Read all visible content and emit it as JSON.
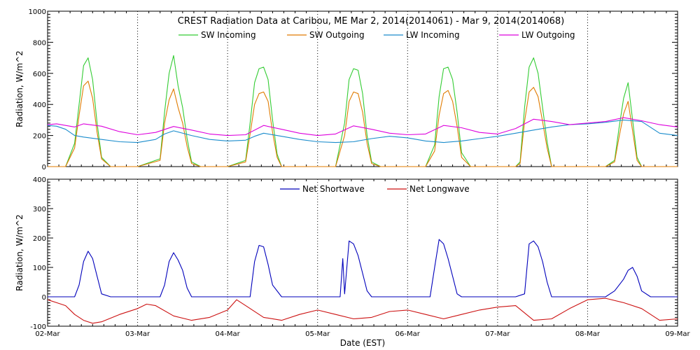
{
  "chart_data": [
    {
      "type": "line",
      "title": "CREST Radiation Data at Caribou, ME   Mar  2, 2014(2014061) - Mar  9, 2014(2014068)",
      "ylabel": "Radiation, W/m^2",
      "ylim": [
        0,
        1000
      ],
      "yticks": [
        0,
        200,
        400,
        600,
        800,
        1000
      ],
      "xlim": [
        0,
        7
      ],
      "grid": true,
      "legend_position": "top",
      "series": [
        {
          "name": "SW Incoming",
          "color": "#33cc33",
          "x": [
            0,
            0.1,
            0.2,
            0.3,
            0.35,
            0.4,
            0.45,
            0.5,
            0.55,
            0.6,
            0.7,
            0.8,
            1,
            1.25,
            1.3,
            1.35,
            1.4,
            1.45,
            1.5,
            1.55,
            1.6,
            1.7,
            1.8,
            2,
            2.2,
            2.25,
            2.3,
            2.35,
            2.4,
            2.45,
            2.5,
            2.55,
            2.6,
            2.7,
            2.8,
            3,
            3.2,
            3.3,
            3.35,
            3.4,
            3.45,
            3.5,
            3.55,
            3.6,
            3.7,
            3.8,
            4,
            4.2,
            4.3,
            4.35,
            4.4,
            4.45,
            4.5,
            4.55,
            4.6,
            4.7,
            4.8,
            5,
            5.2,
            5.25,
            5.3,
            5.35,
            5.4,
            5.45,
            5.5,
            5.55,
            5.6,
            5.7,
            5.8,
            6,
            6.2,
            6.3,
            6.35,
            6.4,
            6.45,
            6.5,
            6.55,
            6.6,
            6.7,
            6.8,
            7
          ],
          "y": [
            0,
            0,
            0,
            150,
            400,
            650,
            700,
            560,
            280,
            60,
            0,
            0,
            0,
            50,
            350,
            600,
            715,
            520,
            380,
            180,
            30,
            0,
            0,
            0,
            40,
            280,
            540,
            630,
            640,
            560,
            300,
            80,
            0,
            0,
            0,
            0,
            0,
            280,
            560,
            630,
            620,
            470,
            200,
            30,
            0,
            0,
            0,
            0,
            140,
            450,
            630,
            640,
            560,
            350,
            90,
            0,
            0,
            0,
            0,
            30,
            380,
            640,
            700,
            600,
            380,
            160,
            0,
            0,
            0,
            0,
            0,
            40,
            250,
            440,
            540,
            300,
            60,
            0,
            0,
            0,
            0
          ]
        },
        {
          "name": "SW Outgoing",
          "color": "#e07b00",
          "x": [
            0,
            0.1,
            0.2,
            0.3,
            0.35,
            0.4,
            0.45,
            0.5,
            0.55,
            0.6,
            0.7,
            0.8,
            1,
            1.25,
            1.3,
            1.35,
            1.4,
            1.45,
            1.5,
            1.55,
            1.6,
            1.7,
            1.8,
            2,
            2.2,
            2.25,
            2.3,
            2.35,
            2.4,
            2.45,
            2.5,
            2.55,
            2.6,
            2.7,
            2.8,
            3,
            3.2,
            3.3,
            3.35,
            3.4,
            3.45,
            3.5,
            3.55,
            3.6,
            3.7,
            3.8,
            4,
            4.2,
            4.3,
            4.35,
            4.4,
            4.45,
            4.5,
            4.55,
            4.6,
            4.7,
            4.8,
            5,
            5.2,
            5.25,
            5.3,
            5.35,
            5.4,
            5.45,
            5.5,
            5.55,
            5.6,
            5.7,
            5.8,
            6,
            6.2,
            6.3,
            6.35,
            6.4,
            6.45,
            6.5,
            6.55,
            6.6,
            6.7,
            6.8,
            7
          ],
          "y": [
            0,
            0,
            0,
            120,
            330,
            520,
            550,
            440,
            220,
            50,
            0,
            0,
            0,
            40,
            280,
            430,
            500,
            380,
            280,
            130,
            20,
            0,
            0,
            0,
            30,
            210,
            400,
            470,
            480,
            420,
            220,
            60,
            0,
            0,
            0,
            0,
            0,
            200,
            420,
            480,
            470,
            350,
            150,
            20,
            0,
            0,
            0,
            0,
            100,
            330,
            470,
            490,
            420,
            260,
            60,
            0,
            0,
            0,
            0,
            20,
            290,
            480,
            510,
            450,
            290,
            120,
            0,
            0,
            0,
            0,
            0,
            30,
            190,
            340,
            420,
            230,
            40,
            0,
            0,
            0,
            0
          ]
        },
        {
          "name": "LW Incoming",
          "color": "#1a8ccc",
          "x": [
            0,
            0.1,
            0.2,
            0.3,
            0.4,
            0.6,
            0.8,
            1,
            1.2,
            1.3,
            1.4,
            1.6,
            1.8,
            2,
            2.2,
            2.3,
            2.4,
            2.6,
            2.8,
            3,
            3.2,
            3.4,
            3.6,
            3.8,
            4,
            4.2,
            4.4,
            4.6,
            4.8,
            5,
            5.2,
            5.4,
            5.6,
            5.8,
            6,
            6.2,
            6.4,
            6.6,
            6.8,
            7
          ],
          "y": [
            265,
            260,
            240,
            200,
            190,
            175,
            160,
            155,
            175,
            210,
            230,
            200,
            175,
            165,
            170,
            195,
            215,
            195,
            175,
            160,
            155,
            160,
            180,
            195,
            185,
            165,
            155,
            165,
            180,
            195,
            215,
            235,
            255,
            270,
            275,
            285,
            300,
            290,
            215,
            200
          ]
        },
        {
          "name": "LW Outgoing",
          "color": "#dd00dd",
          "x": [
            0,
            0.1,
            0.2,
            0.3,
            0.4,
            0.6,
            0.8,
            1,
            1.2,
            1.4,
            1.6,
            1.8,
            2,
            2.2,
            2.4,
            2.6,
            2.8,
            3,
            3.2,
            3.4,
            3.6,
            3.8,
            4,
            4.2,
            4.4,
            4.6,
            4.8,
            5,
            5.2,
            5.4,
            5.6,
            5.8,
            6,
            6.2,
            6.4,
            6.6,
            6.8,
            7
          ],
          "y": [
            270,
            275,
            265,
            255,
            275,
            260,
            225,
            205,
            220,
            258,
            235,
            210,
            200,
            205,
            265,
            240,
            215,
            200,
            210,
            262,
            240,
            215,
            205,
            210,
            265,
            250,
            220,
            210,
            245,
            305,
            290,
            270,
            280,
            290,
            315,
            295,
            270,
            255
          ]
        }
      ]
    },
    {
      "type": "line",
      "title": "",
      "xlabel": "Date (EST)",
      "ylabel": "Radiation, W/m^2",
      "ylim": [
        -100,
        400
      ],
      "yticks": [
        -100,
        0,
        100,
        200,
        300,
        400
      ],
      "xlim": [
        0,
        7
      ],
      "categories": [
        "02-Mar",
        "03-Mar",
        "04-Mar",
        "05-Mar",
        "06-Mar",
        "07-Mar",
        "08-Mar",
        "09-Mar"
      ],
      "grid": true,
      "legend_position": "top",
      "series": [
        {
          "name": "Net Shortwave",
          "color": "#0000bb",
          "x": [
            0,
            0.3,
            0.35,
            0.4,
            0.45,
            0.5,
            0.55,
            0.6,
            0.7,
            1,
            1.25,
            1.3,
            1.35,
            1.4,
            1.45,
            1.5,
            1.55,
            1.6,
            1.7,
            2,
            2.25,
            2.3,
            2.35,
            2.4,
            2.45,
            2.5,
            2.6,
            2.7,
            3,
            3.25,
            3.28,
            3.3,
            3.35,
            3.4,
            3.45,
            3.5,
            3.55,
            3.6,
            3.7,
            4,
            4.25,
            4.3,
            4.35,
            4.4,
            4.45,
            4.5,
            4.55,
            4.6,
            4.7,
            5,
            5.2,
            5.3,
            5.35,
            5.4,
            5.45,
            5.5,
            5.55,
            5.6,
            5.7,
            6,
            6.2,
            6.3,
            6.4,
            6.45,
            6.5,
            6.55,
            6.6,
            6.7,
            7
          ],
          "y": [
            0,
            0,
            40,
            120,
            155,
            130,
            70,
            10,
            0,
            0,
            0,
            40,
            120,
            150,
            125,
            90,
            30,
            0,
            0,
            0,
            0,
            120,
            175,
            170,
            110,
            40,
            0,
            0,
            0,
            0,
            130,
            10,
            190,
            180,
            140,
            80,
            20,
            0,
            0,
            0,
            0,
            100,
            195,
            180,
            130,
            70,
            10,
            0,
            0,
            0,
            0,
            10,
            180,
            190,
            170,
            120,
            50,
            0,
            0,
            0,
            0,
            20,
            60,
            90,
            100,
            70,
            20,
            0,
            0
          ]
        },
        {
          "name": "Net Longwave",
          "color": "#cc1111",
          "x": [
            0,
            0.1,
            0.2,
            0.3,
            0.4,
            0.5,
            0.6,
            0.8,
            1,
            1.1,
            1.2,
            1.4,
            1.6,
            1.8,
            2,
            2.1,
            2.2,
            2.4,
            2.6,
            2.8,
            3,
            3.2,
            3.4,
            3.6,
            3.8,
            4,
            4.2,
            4.4,
            4.6,
            4.8,
            5,
            5.2,
            5.4,
            5.6,
            5.8,
            6,
            6.2,
            6.4,
            6.6,
            6.8,
            7
          ],
          "y": [
            -10,
            -20,
            -30,
            -60,
            -80,
            -90,
            -85,
            -60,
            -40,
            -25,
            -30,
            -65,
            -80,
            -70,
            -45,
            -10,
            -30,
            -70,
            -80,
            -60,
            -45,
            -60,
            -75,
            -70,
            -50,
            -45,
            -60,
            -75,
            -60,
            -45,
            -35,
            -30,
            -80,
            -75,
            -40,
            -10,
            -5,
            -20,
            -40,
            -80,
            -75
          ]
        }
      ]
    }
  ],
  "x_tick_labels": [
    "02-Mar",
    "03-Mar",
    "04-Mar",
    "05-Mar",
    "06-Mar",
    "07-Mar",
    "08-Mar",
    "09-Mar"
  ]
}
